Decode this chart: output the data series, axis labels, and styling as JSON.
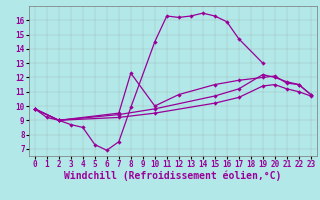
{
  "color": "#990099",
  "bg_color": "#b3e8e8",
  "grid_color": "#999999",
  "xlabel": "Windchill (Refroidissement éolien,°C)",
  "xlim": [
    -0.5,
    23.5
  ],
  "ylim": [
    6.5,
    17.0
  ],
  "yticks": [
    7,
    8,
    9,
    10,
    11,
    12,
    13,
    14,
    15,
    16
  ],
  "xticks": [
    0,
    1,
    2,
    3,
    4,
    5,
    6,
    7,
    8,
    9,
    10,
    11,
    12,
    13,
    14,
    15,
    16,
    17,
    18,
    19,
    20,
    21,
    22,
    23
  ],
  "tick_fontsize": 5.5,
  "xlabel_fontsize": 7.0,
  "line1_x": [
    0,
    1,
    2,
    3,
    4,
    5,
    6,
    7,
    8,
    10,
    11,
    12,
    13,
    14,
    15,
    16,
    17,
    19
  ],
  "line1_y": [
    9.8,
    9.2,
    9.0,
    8.7,
    8.5,
    7.3,
    6.9,
    7.5,
    9.9,
    14.5,
    16.3,
    16.2,
    16.3,
    16.5,
    16.3,
    15.9,
    14.7,
    13.0
  ],
  "line2_x": [
    0,
    2,
    7,
    8,
    10,
    12,
    15,
    17,
    19,
    20,
    21,
    22,
    23
  ],
  "line2_y": [
    9.8,
    9.0,
    9.5,
    12.3,
    10.0,
    10.8,
    11.5,
    11.8,
    12.0,
    12.1,
    11.6,
    11.5,
    10.8
  ],
  "line3_x": [
    0,
    2,
    7,
    10,
    15,
    17,
    19,
    20,
    21,
    22,
    23
  ],
  "line3_y": [
    9.8,
    9.0,
    9.4,
    9.8,
    10.7,
    11.2,
    12.2,
    12.0,
    11.7,
    11.5,
    10.8
  ],
  "line4_x": [
    0,
    2,
    7,
    10,
    15,
    17,
    19,
    20,
    21,
    22,
    23
  ],
  "line4_y": [
    9.8,
    9.0,
    9.2,
    9.5,
    10.2,
    10.6,
    11.4,
    11.5,
    11.2,
    11.0,
    10.7
  ]
}
